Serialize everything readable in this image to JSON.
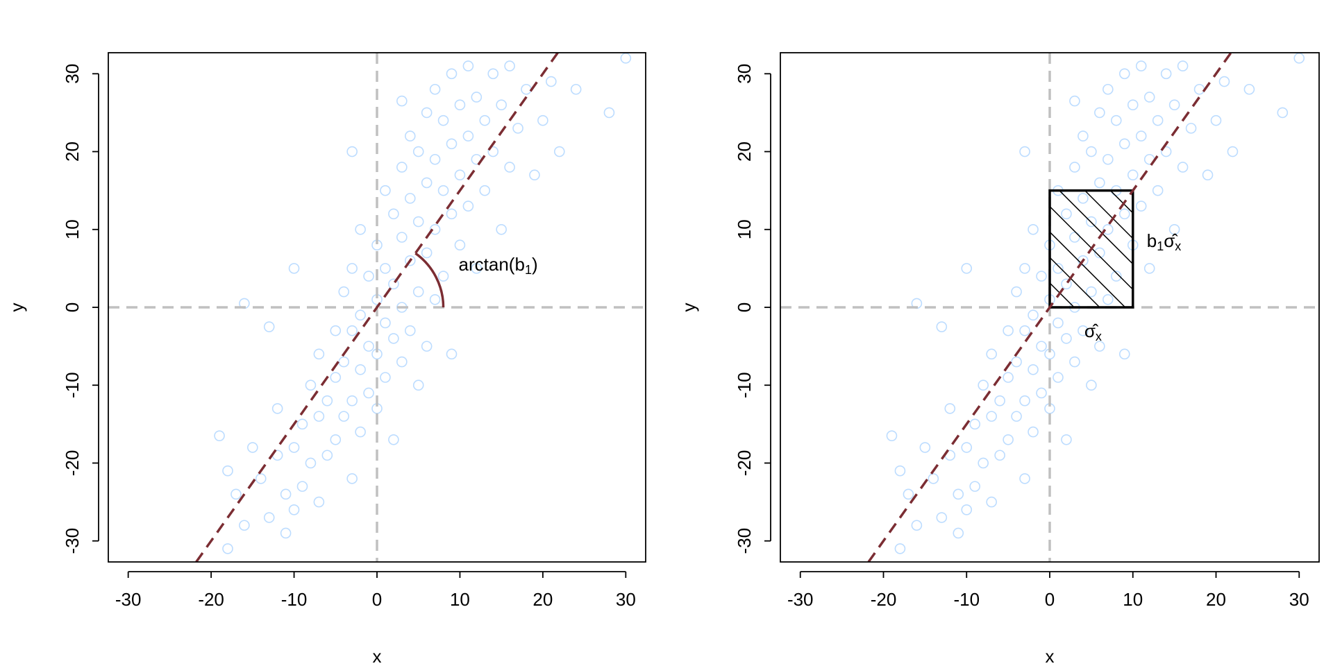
{
  "chart_data": [
    {
      "type": "scatter",
      "xlabel": "x",
      "ylabel": "y",
      "xlim": [
        -32.4,
        32.4
      ],
      "ylim": [
        -32.7,
        32.7
      ],
      "xticks": [
        -30,
        -20,
        -10,
        0,
        10,
        20,
        30
      ],
      "yticks": [
        -30,
        -20,
        -10,
        0,
        10,
        20,
        30
      ],
      "color": "#bcdcff",
      "line_color": "#7b2d33",
      "ref_color": "#c0c0c0",
      "hlines": [
        0
      ],
      "vlines": [
        0
      ],
      "fit_line": {
        "x": [
          -21.8,
          21.8
        ],
        "y": [
          -32.7,
          32.7
        ]
      },
      "arc_radius": 8,
      "annotation": [
        "arctan(b",
        "1",
        ")"
      ],
      "x": [
        -19,
        -18,
        -17,
        -16,
        -15,
        -14,
        -13,
        -12,
        -12,
        -11,
        -11,
        -10,
        -10,
        -9,
        -9,
        -8,
        -8,
        -7,
        -7,
        -7,
        -6,
        -6,
        -5,
        -5,
        -5,
        -4,
        -4,
        -4,
        -3,
        -3,
        -3,
        -3,
        -2,
        -2,
        -2,
        -2,
        -1,
        -1,
        -1,
        0,
        0,
        0,
        0,
        1,
        1,
        1,
        1,
        2,
        2,
        2,
        2,
        3,
        3,
        3,
        3,
        4,
        4,
        4,
        4,
        5,
        5,
        5,
        5,
        6,
        6,
        6,
        6,
        7,
        7,
        7,
        7,
        8,
        8,
        8,
        9,
        9,
        9,
        9,
        10,
        10,
        10,
        11,
        11,
        11,
        12,
        12,
        12,
        13,
        13,
        14,
        14,
        15,
        15,
        16,
        16,
        17,
        18,
        19,
        20,
        21,
        22,
        24,
        28,
        30,
        -16,
        -10,
        -13,
        3,
        -18,
        -3
      ],
      "y": [
        -16.5,
        -21,
        -24,
        -28,
        -18,
        -22,
        -27,
        -13,
        -19,
        -29,
        -24,
        -18,
        -26,
        -15,
        -23,
        -10,
        -20,
        -6,
        -14,
        -25,
        -12,
        -19,
        -3,
        -9,
        -17,
        2,
        -7,
        -14,
        5,
        -3,
        -12,
        -22,
        10,
        -1,
        -8,
        -16,
        4,
        -5,
        -11,
        8,
        1,
        -6,
        -13,
        15,
        5,
        -2,
        -9,
        12,
        3,
        -4,
        -17,
        18,
        9,
        0,
        -7,
        22,
        14,
        6,
        -3,
        20,
        11,
        2,
        -10,
        25,
        16,
        7,
        -5,
        28,
        19,
        10,
        1,
        24,
        15,
        4,
        30,
        21,
        12,
        -6,
        26,
        17,
        8,
        31,
        22,
        13,
        19,
        27,
        5,
        24,
        15,
        30,
        20,
        26,
        10,
        31,
        18,
        23,
        28,
        17,
        24,
        29,
        20,
        28,
        25,
        32,
        0.5,
        5,
        -2.5,
        26.5,
        -31,
        20
      ]
    },
    {
      "type": "scatter",
      "xlabel": "x",
      "ylabel": "y",
      "xlim": [
        -32.4,
        32.4
      ],
      "ylim": [
        -32.7,
        32.7
      ],
      "xticks": [
        -30,
        -20,
        -10,
        0,
        10,
        20,
        30
      ],
      "yticks": [
        -30,
        -20,
        -10,
        0,
        10,
        20,
        30
      ],
      "color": "#bcdcff",
      "line_color": "#7b2d33",
      "ref_color": "#c0c0c0",
      "hlines": [
        0
      ],
      "vlines": [
        0
      ],
      "fit_line": {
        "x": [
          -21.8,
          21.8
        ],
        "y": [
          -32.7,
          32.7
        ]
      },
      "rect": {
        "x": [
          0,
          10
        ],
        "y": [
          0,
          15
        ]
      },
      "sigma_label": [
        "σ̂",
        "x"
      ],
      "b1_label": [
        "b",
        "1",
        "σ̂",
        "x"
      ],
      "x": [
        -19,
        -18,
        -17,
        -16,
        -15,
        -14,
        -13,
        -12,
        -12,
        -11,
        -11,
        -10,
        -10,
        -9,
        -9,
        -8,
        -8,
        -7,
        -7,
        -7,
        -6,
        -6,
        -5,
        -5,
        -5,
        -4,
        -4,
        -4,
        -3,
        -3,
        -3,
        -3,
        -2,
        -2,
        -2,
        -2,
        -1,
        -1,
        -1,
        0,
        0,
        0,
        0,
        1,
        1,
        1,
        1,
        2,
        2,
        2,
        2,
        3,
        3,
        3,
        3,
        4,
        4,
        4,
        4,
        5,
        5,
        5,
        5,
        6,
        6,
        6,
        6,
        7,
        7,
        7,
        7,
        8,
        8,
        8,
        9,
        9,
        9,
        9,
        10,
        10,
        10,
        11,
        11,
        11,
        12,
        12,
        12,
        13,
        13,
        14,
        14,
        15,
        15,
        16,
        16,
        17,
        18,
        19,
        20,
        21,
        22,
        24,
        28,
        30,
        -16,
        -10,
        -13,
        3,
        -18,
        -3
      ],
      "y": [
        -16.5,
        -21,
        -24,
        -28,
        -18,
        -22,
        -27,
        -13,
        -19,
        -29,
        -24,
        -18,
        -26,
        -15,
        -23,
        -10,
        -20,
        -6,
        -14,
        -25,
        -12,
        -19,
        -3,
        -9,
        -17,
        2,
        -7,
        -14,
        5,
        -3,
        -12,
        -22,
        10,
        -1,
        -8,
        -16,
        4,
        -5,
        -11,
        8,
        1,
        -6,
        -13,
        15,
        5,
        -2,
        -9,
        12,
        3,
        -4,
        -17,
        18,
        9,
        0,
        -7,
        22,
        14,
        6,
        -3,
        20,
        11,
        2,
        -10,
        25,
        16,
        7,
        -5,
        28,
        19,
        10,
        1,
        24,
        15,
        4,
        30,
        21,
        12,
        -6,
        26,
        17,
        8,
        31,
        22,
        13,
        19,
        27,
        5,
        24,
        15,
        30,
        20,
        26,
        10,
        31,
        18,
        23,
        28,
        17,
        24,
        29,
        20,
        28,
        25,
        32,
        0.5,
        5,
        -2.5,
        26.5,
        -31,
        20
      ]
    }
  ]
}
